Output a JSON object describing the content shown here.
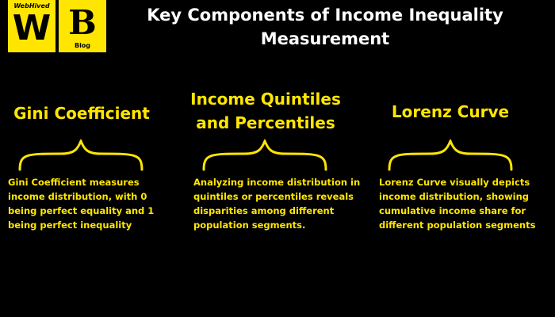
{
  "logo": {
    "brand_text": "WebHived",
    "w_letter": "W",
    "b_letter": "B",
    "b_sub": "Blog"
  },
  "title": {
    "line1": "Key Components of Income Inequality",
    "line2": "Measurement"
  },
  "columns": [
    {
      "heading_line1": "Gini Coefficient",
      "heading_line2": "",
      "desc_lines": [
        "Gini Coefficient measures",
        "income distribution, with 0",
        "being perfect equality and 1",
        "being perfect inequality"
      ]
    },
    {
      "heading_line1": "Income Quintiles",
      "heading_line2": "and Percentiles",
      "desc_lines": [
        "Analyzing income distribution in",
        "quintiles or percentiles reveals",
        "disparities among different",
        "population segments."
      ]
    },
    {
      "heading_line1": "Lorenz Curve",
      "heading_line2": "",
      "desc_lines": [
        "Lorenz Curve visually depicts",
        "income distribution, showing",
        "cumulative income share for",
        "different population segments"
      ]
    }
  ],
  "colors": {
    "background": "#000000",
    "accent": "#ffe600",
    "title": "#ffffff"
  }
}
